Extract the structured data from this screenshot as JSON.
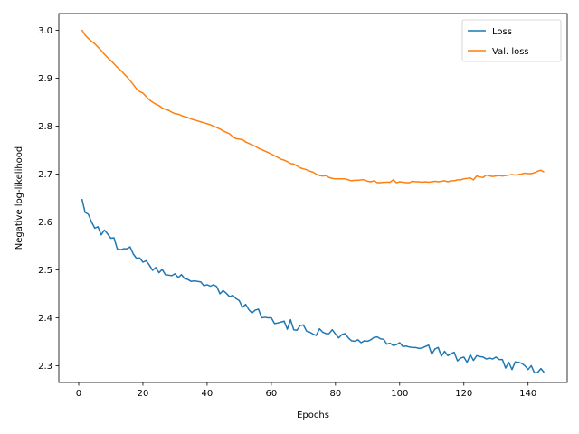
{
  "chart_data": {
    "type": "line",
    "title": "",
    "xlabel": "Epochs",
    "ylabel": "Negative log-likelihood",
    "xlim": [
      -6.2,
      152.2
    ],
    "ylim": [
      2.265,
      3.035
    ],
    "xticks": [
      0,
      20,
      40,
      60,
      80,
      100,
      120,
      140
    ],
    "yticks": [
      2.3,
      2.4,
      2.5,
      2.6,
      2.7,
      2.8,
      2.9,
      3.0
    ],
    "ytick_labels": [
      "2.3",
      "2.4",
      "2.5",
      "2.6",
      "2.7",
      "2.8",
      "2.9",
      "3.0"
    ],
    "grid": false,
    "legend_position": "top-right",
    "series": [
      {
        "name": "Loss",
        "color": "#1f77b4",
        "x": [
          1,
          2,
          3,
          4,
          5,
          6,
          7,
          8,
          9,
          10,
          11,
          12,
          13,
          14,
          15,
          16,
          17,
          18,
          19,
          20,
          21,
          22,
          23,
          24,
          25,
          26,
          27,
          28,
          29,
          30,
          31,
          32,
          33,
          34,
          35,
          36,
          37,
          38,
          39,
          40,
          41,
          42,
          43,
          44,
          45,
          46,
          47,
          48,
          49,
          50,
          51,
          52,
          53,
          54,
          55,
          56,
          57,
          58,
          59,
          60,
          61,
          62,
          63,
          64,
          65,
          66,
          67,
          68,
          69,
          70,
          71,
          72,
          73,
          74,
          75,
          76,
          77,
          78,
          79,
          80,
          81,
          82,
          83,
          84,
          85,
          86,
          87,
          88,
          89,
          90,
          91,
          92,
          93,
          94,
          95,
          96,
          97,
          98,
          99,
          100,
          101,
          102,
          103,
          104,
          105,
          106,
          107,
          108,
          109,
          110,
          111,
          112,
          113,
          114,
          115,
          116,
          117,
          118,
          119,
          120,
          121,
          122,
          123,
          124,
          125,
          126,
          127,
          128,
          129,
          130,
          131,
          132,
          133,
          134,
          135,
          136,
          137,
          138,
          139,
          140,
          141,
          142,
          143,
          144,
          145
        ],
        "values": [
          2.648,
          2.62,
          2.616,
          2.6,
          2.587,
          2.59,
          2.573,
          2.583,
          2.575,
          2.566,
          2.567,
          2.544,
          2.542,
          2.544,
          2.544,
          2.548,
          2.533,
          2.524,
          2.525,
          2.516,
          2.519,
          2.51,
          2.499,
          2.505,
          2.494,
          2.501,
          2.49,
          2.489,
          2.488,
          2.492,
          2.484,
          2.49,
          2.482,
          2.48,
          2.476,
          2.477,
          2.476,
          2.475,
          2.467,
          2.469,
          2.466,
          2.469,
          2.465,
          2.45,
          2.457,
          2.451,
          2.444,
          2.447,
          2.44,
          2.436,
          2.422,
          2.428,
          2.417,
          2.41,
          2.416,
          2.418,
          2.4,
          2.401,
          2.4,
          2.4,
          2.388,
          2.389,
          2.391,
          2.393,
          2.376,
          2.396,
          2.375,
          2.374,
          2.384,
          2.385,
          2.372,
          2.37,
          2.366,
          2.363,
          2.377,
          2.37,
          2.367,
          2.367,
          2.375,
          2.366,
          2.358,
          2.365,
          2.367,
          2.358,
          2.352,
          2.351,
          2.354,
          2.348,
          2.352,
          2.351,
          2.354,
          2.359,
          2.36,
          2.356,
          2.355,
          2.345,
          2.347,
          2.342,
          2.344,
          2.348,
          2.34,
          2.341,
          2.339,
          2.338,
          2.338,
          2.336,
          2.337,
          2.34,
          2.343,
          2.324,
          2.335,
          2.338,
          2.32,
          2.33,
          2.321,
          2.325,
          2.328,
          2.31,
          2.316,
          2.318,
          2.307,
          2.323,
          2.311,
          2.321,
          2.319,
          2.318,
          2.314,
          2.316,
          2.314,
          2.318,
          2.313,
          2.313,
          2.295,
          2.307,
          2.292,
          2.308,
          2.307,
          2.305,
          2.3,
          2.292,
          2.3,
          2.285,
          2.286,
          2.294,
          2.286
        ]
      },
      {
        "name": "Val. loss",
        "color": "#ff7f0e",
        "x": [
          1,
          2,
          3,
          4,
          5,
          6,
          7,
          8,
          9,
          10,
          11,
          12,
          13,
          14,
          15,
          16,
          17,
          18,
          19,
          20,
          21,
          22,
          23,
          24,
          25,
          26,
          27,
          28,
          29,
          30,
          31,
          32,
          33,
          34,
          35,
          36,
          37,
          38,
          39,
          40,
          41,
          42,
          43,
          44,
          45,
          46,
          47,
          48,
          49,
          50,
          51,
          52,
          53,
          54,
          55,
          56,
          57,
          58,
          59,
          60,
          61,
          62,
          63,
          64,
          65,
          66,
          67,
          68,
          69,
          70,
          71,
          72,
          73,
          74,
          75,
          76,
          77,
          78,
          79,
          80,
          81,
          82,
          83,
          84,
          85,
          86,
          87,
          88,
          89,
          90,
          91,
          92,
          93,
          94,
          95,
          96,
          97,
          98,
          99,
          100,
          101,
          102,
          103,
          104,
          105,
          106,
          107,
          108,
          109,
          110,
          111,
          112,
          113,
          114,
          115,
          116,
          117,
          118,
          119,
          120,
          121,
          122,
          123,
          124,
          125,
          126,
          127,
          128,
          129,
          130,
          131,
          132,
          133,
          134,
          135,
          136,
          137,
          138,
          139,
          140,
          141,
          142,
          143,
          144,
          145
        ],
        "values": [
          3.001,
          2.99,
          2.983,
          2.977,
          2.972,
          2.965,
          2.958,
          2.95,
          2.943,
          2.937,
          2.93,
          2.923,
          2.917,
          2.91,
          2.903,
          2.895,
          2.887,
          2.878,
          2.872,
          2.869,
          2.862,
          2.855,
          2.85,
          2.846,
          2.843,
          2.838,
          2.835,
          2.833,
          2.829,
          2.826,
          2.825,
          2.822,
          2.82,
          2.818,
          2.815,
          2.813,
          2.811,
          2.809,
          2.807,
          2.805,
          2.803,
          2.8,
          2.797,
          2.794,
          2.79,
          2.787,
          2.784,
          2.778,
          2.774,
          2.773,
          2.772,
          2.767,
          2.764,
          2.761,
          2.758,
          2.754,
          2.751,
          2.748,
          2.745,
          2.742,
          2.738,
          2.735,
          2.731,
          2.729,
          2.726,
          2.722,
          2.721,
          2.717,
          2.713,
          2.711,
          2.709,
          2.706,
          2.704,
          2.7,
          2.697,
          2.696,
          2.697,
          2.693,
          2.691,
          2.69,
          2.69,
          2.69,
          2.69,
          2.688,
          2.686,
          2.687,
          2.687,
          2.688,
          2.688,
          2.685,
          2.684,
          2.686,
          2.682,
          2.682,
          2.683,
          2.683,
          2.683,
          2.688,
          2.682,
          2.684,
          2.683,
          2.682,
          2.682,
          2.685,
          2.684,
          2.684,
          2.683,
          2.684,
          2.683,
          2.684,
          2.685,
          2.684,
          2.685,
          2.686,
          2.684,
          2.686,
          2.686,
          2.688,
          2.688,
          2.69,
          2.691,
          2.692,
          2.688,
          2.696,
          2.694,
          2.693,
          2.698,
          2.696,
          2.695,
          2.696,
          2.697,
          2.696,
          2.697,
          2.698,
          2.699,
          2.698,
          2.699,
          2.7,
          2.702,
          2.701,
          2.701,
          2.703,
          2.706,
          2.708,
          2.704
        ]
      }
    ]
  }
}
